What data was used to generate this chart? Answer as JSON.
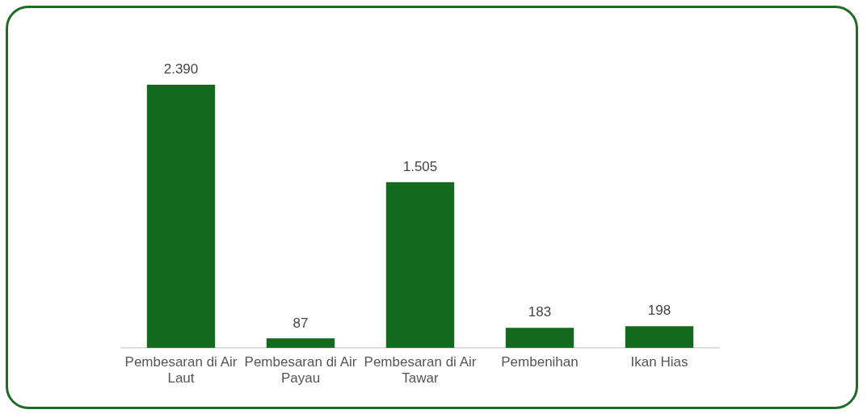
{
  "chart_data": {
    "type": "bar",
    "categories": [
      "Pembesaran di Air Laut",
      "Pembesaran di Air Payau",
      "Pembesaran di Air Tawar",
      "Pembenihan",
      "Ikan Hias"
    ],
    "values": [
      2390,
      87,
      1505,
      183,
      198
    ],
    "value_labels": [
      "2.390",
      "87",
      "1.505",
      "183",
      "198"
    ],
    "color": "#136a1e",
    "grid": false,
    "legend": false,
    "tick_labels": "x"
  }
}
